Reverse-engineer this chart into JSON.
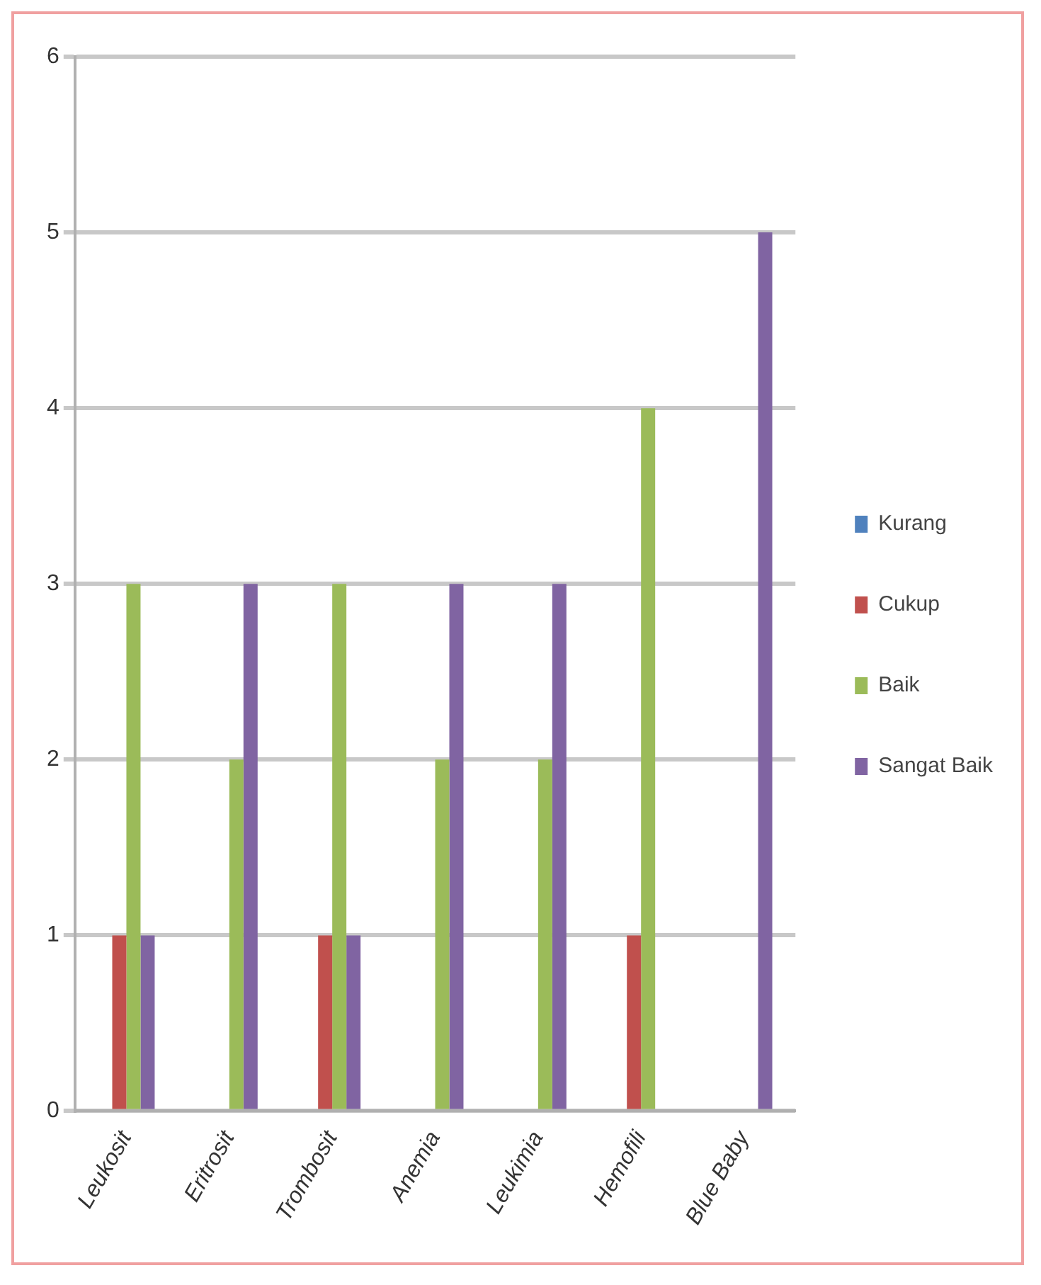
{
  "chart_data": {
    "type": "bar",
    "categories": [
      "Leukosit",
      "Eritrosit",
      "Trombosit",
      "Anemia",
      "Leukimia",
      "Hemofili",
      "Blue Baby"
    ],
    "series": [
      {
        "name": "Kurang",
        "color": "#4f81bd",
        "values": [
          0,
          0,
          0,
          0,
          0,
          0,
          0
        ]
      },
      {
        "name": "Cukup",
        "color": "#c0504d",
        "values": [
          1,
          0,
          1,
          0,
          0,
          1,
          0
        ]
      },
      {
        "name": "Baik",
        "color": "#9bbb59",
        "values": [
          3,
          2,
          3,
          2,
          2,
          4,
          0
        ]
      },
      {
        "name": "Sangat Baik",
        "color": "#8064a2",
        "values": [
          1,
          3,
          1,
          3,
          3,
          0,
          5
        ]
      }
    ],
    "ylim": [
      0,
      6
    ],
    "yticks": [
      0,
      1,
      2,
      3,
      4,
      5,
      6
    ],
    "grid": "y",
    "legend": "right"
  }
}
